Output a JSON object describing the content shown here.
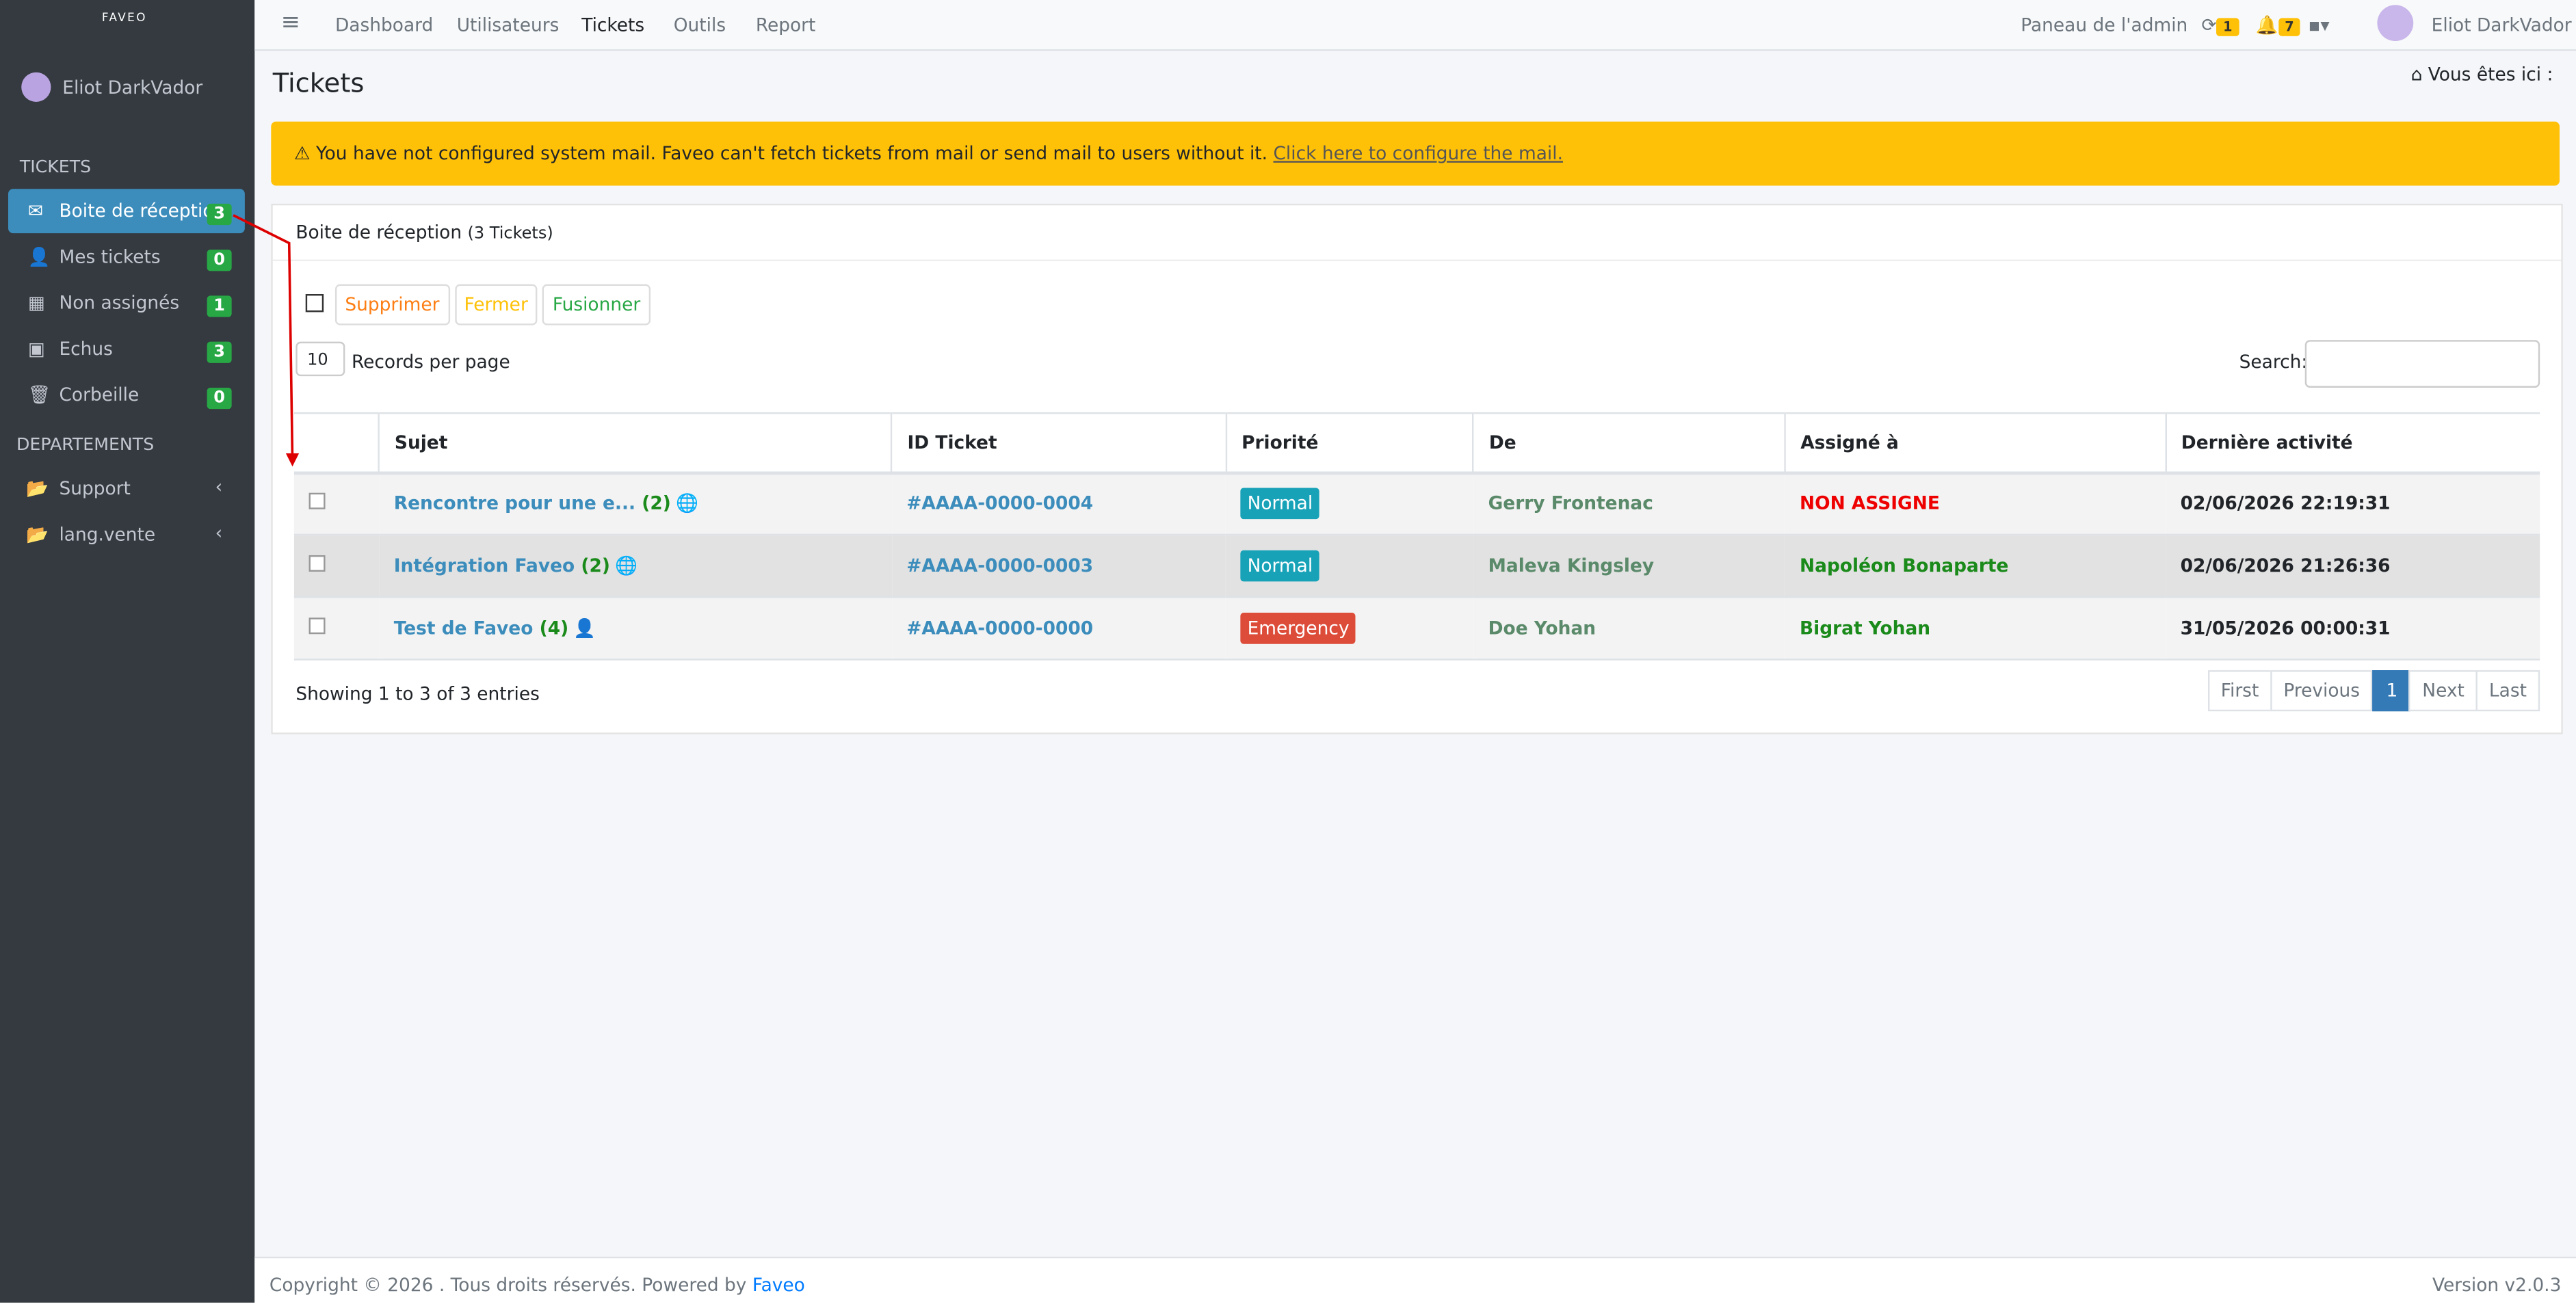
{
  "sidebar": {
    "logo": "FAVEO",
    "user": "Eliot DarkVador",
    "section_tickets": "TICKETS",
    "items": [
      {
        "label": "Boite de réception",
        "count": 3
      },
      {
        "label": "Mes tickets",
        "count": 0
      },
      {
        "label": "Non assignés",
        "count": 1
      },
      {
        "label": "Echus",
        "count": 3
      },
      {
        "label": "Corbeille",
        "count": 0
      }
    ],
    "section_departments": "DEPARTEMENTS",
    "departments": [
      "Support",
      "lang.vente"
    ]
  },
  "topnav": {
    "items": [
      "Dashboard",
      "Utilisateurs",
      "Tickets",
      "Outils",
      "Report"
    ],
    "admin": "Paneau de l'admin",
    "sync_count": 1,
    "bell_count": 7,
    "user": "Eliot DarkVador"
  },
  "page": {
    "title": "Tickets",
    "breadcrumb": "Vous êtes ici :"
  },
  "alert": {
    "text": "You have not configured system mail. Faveo can't fetch tickets from mail or send mail to users without it.",
    "link": "Click here to configure the mail."
  },
  "box": {
    "title": "Boite de réception",
    "count": "(3 Tickets)"
  },
  "actions": [
    "Supprimer",
    "Fermer",
    "Fusionner"
  ],
  "records": {
    "value": 10,
    "label": "Records per page"
  },
  "search_label": "Search:",
  "table": {
    "headers": [
      "Sujet",
      "ID Ticket",
      "Priorité",
      "De",
      "Assigné à",
      "Dernière activité"
    ],
    "rows": [
      {
        "subject": "Rencontre pour une e...",
        "count": "(2)",
        "id": "#AAAA-0000-0004",
        "priority": "Normal",
        "from": "Gerry Frontenac",
        "assigned": "NON ASSIGNE",
        "date": "02/06/2026 22:19:31"
      },
      {
        "subject": "Intégration Faveo",
        "count": "(2)",
        "id": "#AAAA-0000-0003",
        "priority": "Normal",
        "from": "Maleva Kingsley",
        "assigned": "Napoléon Bonaparte",
        "date": "02/06/2026 21:26:36"
      },
      {
        "subject": "Test de Faveo",
        "count": "(4)",
        "id": "#AAAA-0000-0000",
        "priority": "Emergency",
        "from": "Doe Yohan",
        "assigned": "Bigrat Yohan",
        "date": "31/05/2026 00:00:31"
      }
    ]
  },
  "info": "Showing 1 to 3 of 3 entries",
  "pagination": [
    "First",
    "Previous",
    "1",
    "Next",
    "Last"
  ],
  "footer": {
    "copyright": "Copyright © 2026 . Tous droits réservés. Powered by",
    "link": "Faveo",
    "version": "Version v2.0.3"
  }
}
